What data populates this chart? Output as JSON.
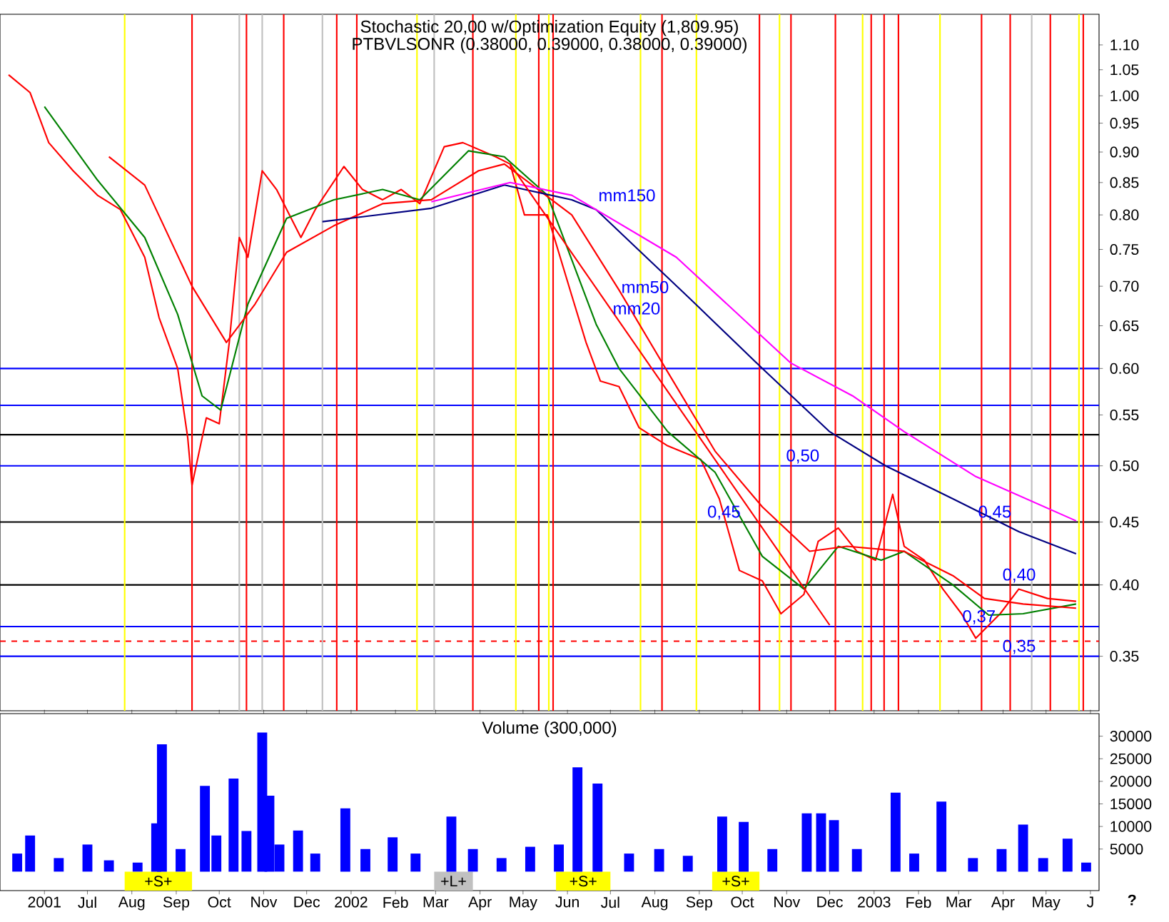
{
  "chart_data": [
    {
      "type": "line",
      "title": "Stochastic 20,00 w/Optimization Equity (1,809.95)",
      "subtitle": "PTBVLSONR (0.38000, 0.39000, 0.38000, 0.39000)",
      "log": true,
      "tick_labels": "y",
      "xlim": [
        "2001-05-01",
        "2003-06-07"
      ],
      "ylim": [
        0.316,
        1.165
      ],
      "yticks": [
        0.35,
        {
          "value": 0.4,
          "label": "0.40"
        },
        0.45,
        {
          "value": 0.5,
          "label": "0.50"
        },
        0.55,
        {
          "value": 0.6,
          "label": "0.60"
        },
        0.65,
        {
          "value": 0.7,
          "label": "0.70"
        },
        0.75,
        {
          "value": 0.8,
          "label": "0.80"
        },
        0.85,
        {
          "value": 0.9,
          "label": "0.90"
        },
        0.95,
        {
          "value": 1.0,
          "label": "1.00"
        },
        1.05,
        {
          "value": 1.1,
          "label": "1.10"
        }
      ],
      "series": [
        {
          "color": "#ff0000",
          "x": [
            "2001-05-07",
            "2001-05-22",
            "2001-06-04",
            "2001-06-21",
            "2001-07-08",
            "2001-07-24",
            "2001-08-10",
            "2001-08-20",
            "2001-09-02",
            "2001-09-09",
            "2001-09-12",
            "2001-09-22",
            "2001-10-01",
            "2001-10-08",
            "2001-10-15",
            "2001-10-21",
            "2001-10-31",
            "2001-11-10",
            "2001-11-27",
            "2001-12-07",
            "2001-12-27",
            "2002-01-09",
            "2002-01-23",
            "2002-02-05",
            "2002-02-18",
            "2002-03-07",
            "2002-03-20",
            "2002-04-12",
            "2002-04-22",
            "2002-05-02",
            "2002-05-18",
            "2002-06-04",
            "2002-06-14",
            "2002-06-24",
            "2002-07-07",
            "2002-07-21",
            "2002-08-10",
            "2002-09-02",
            "2002-09-15",
            "2002-09-29",
            "2002-10-15",
            "2002-10-28",
            "2002-11-13",
            "2002-11-23",
            "2002-12-07",
            "2002-12-20",
            "2003-01-02",
            "2003-01-14",
            "2003-01-22",
            "2003-02-05",
            "2003-02-18",
            "2003-03-03",
            "2003-03-13",
            "2003-03-30",
            "2003-04-12",
            "2003-05-02",
            "2003-05-22"
          ],
          "values": [
            1.04,
            1.006,
            0.916,
            0.869,
            0.83,
            0.808,
            0.739,
            0.66,
            0.6,
            0.527,
            0.482,
            0.547,
            0.541,
            0.63,
            0.767,
            0.739,
            0.869,
            0.839,
            0.767,
            0.808,
            0.876,
            0.839,
            0.823,
            0.839,
            0.817,
            0.909,
            0.916,
            0.892,
            0.88,
            0.8,
            0.8,
            0.688,
            0.63,
            0.586,
            0.58,
            0.537,
            0.519,
            0.506,
            0.47,
            0.411,
            0.403,
            0.379,
            0.393,
            0.434,
            0.445,
            0.426,
            0.419,
            0.474,
            0.43,
            0.419,
            0.397,
            0.379,
            0.362,
            0.379,
            0.397,
            0.39,
            0.388
          ]
        },
        {
          "color": "#008000",
          "x": [
            "2001-06-01",
            "2001-07-08",
            "2001-08-10",
            "2001-09-02",
            "2001-09-19",
            "2001-10-02",
            "2001-10-21",
            "2001-11-17",
            "2001-12-20",
            "2002-01-23",
            "2002-02-18",
            "2002-03-24",
            "2002-04-18",
            "2002-05-18",
            "2002-06-21",
            "2002-07-07",
            "2002-08-10",
            "2002-09-12",
            "2002-10-15",
            "2002-11-13",
            "2002-12-07",
            "2003-01-06",
            "2003-01-22",
            "2003-02-25",
            "2003-03-22",
            "2003-04-15",
            "2003-05-22"
          ],
          "values": [
            0.98,
            0.854,
            0.767,
            0.664,
            0.57,
            0.555,
            0.677,
            0.795,
            0.823,
            0.839,
            0.823,
            0.902,
            0.892,
            0.83,
            0.652,
            0.6,
            0.533,
            0.494,
            0.422,
            0.397,
            0.43,
            0.419,
            0.426,
            0.4,
            0.378,
            0.379,
            0.386
          ]
        },
        {
          "color": "#ff0000",
          "x": [
            "2001-07-16",
            "2001-08-10",
            "2001-09-12",
            "2001-10-06",
            "2001-10-26",
            "2001-11-17",
            "2001-12-20",
            "2002-01-23",
            "2002-02-26",
            "2002-03-31",
            "2002-04-18",
            "2002-06-04",
            "2002-07-07",
            "2002-08-10",
            "2002-09-12",
            "2002-10-15",
            "2002-11-17",
            "2002-12-13",
            "2003-01-22",
            "2003-02-25",
            "2003-03-19",
            "2003-04-15",
            "2003-05-22"
          ],
          "values": [
            0.892,
            0.846,
            0.7,
            0.63,
            0.677,
            0.746,
            0.784,
            0.817,
            0.823,
            0.869,
            0.88,
            0.8,
            0.695,
            0.596,
            0.514,
            0.463,
            0.426,
            0.43,
            0.426,
            0.407,
            0.39,
            0.386,
            0.383
          ]
        },
        {
          "color": "#000080",
          "x": [
            "2001-12-12",
            "2002-02-26",
            "2002-04-18",
            "2002-06-04",
            "2002-06-21",
            "2002-08-26",
            "2002-10-15",
            "2002-12-01",
            "2003-01-09",
            "2003-02-25",
            "2003-04-12",
            "2003-05-22"
          ],
          "values": [
            0.79,
            0.81,
            0.846,
            0.823,
            0.808,
            0.683,
            0.6,
            0.533,
            0.5,
            0.47,
            0.442,
            0.424
          ]
        },
        {
          "color": "#ff00ff",
          "x": [
            "2002-02-26",
            "2002-04-22",
            "2002-06-04",
            "2002-08-16",
            "2002-11-04",
            "2002-12-17",
            "2003-01-22",
            "2003-03-13",
            "2003-05-22"
          ],
          "values": [
            0.82,
            0.85,
            0.83,
            0.739,
            0.606,
            0.57,
            0.533,
            0.49,
            0.451
          ]
        },
        {
          "color": "#ff0000",
          "x": [
            "2002-04-22",
            "2002-12-01"
          ],
          "values": [
            0.88,
            0.371
          ]
        }
      ],
      "ref_lines": [
        {
          "axis": "y",
          "value": 0.6,
          "color": "#0000ff"
        },
        {
          "axis": "y",
          "value": 0.56,
          "color": "#0000ff"
        },
        {
          "axis": "y",
          "value": 0.53,
          "color": "#000000"
        },
        {
          "axis": "y",
          "value": 0.5,
          "color": "#0000ff"
        },
        {
          "axis": "y",
          "value": 0.45,
          "color": "#000000"
        },
        {
          "axis": "y",
          "value": 0.4,
          "color": "#000000"
        },
        {
          "axis": "y",
          "value": 0.37,
          "color": "#0000ff"
        },
        {
          "axis": "y",
          "value": 0.36,
          "color": "#ff0000",
          "line_style": "dashed"
        },
        {
          "axis": "y",
          "value": 0.35,
          "color": "#0000ff"
        },
        {
          "axis": "x",
          "value": "2001-09-12",
          "color": "#ff0000"
        },
        {
          "axis": "x",
          "value": "2001-10-20",
          "color": "#ff0000"
        },
        {
          "axis": "x",
          "value": "2001-11-15",
          "color": "#ff0000"
        },
        {
          "axis": "x",
          "value": "2001-12-22",
          "color": "#ff0000"
        },
        {
          "axis": "x",
          "value": "2002-01-05",
          "color": "#ff0000"
        },
        {
          "axis": "x",
          "value": "2002-03-27",
          "color": "#ff0000"
        },
        {
          "axis": "x",
          "value": "2002-05-12",
          "color": "#ff0000"
        },
        {
          "axis": "x",
          "value": "2002-05-22",
          "color": "#ff0000"
        },
        {
          "axis": "x",
          "value": "2002-08-06",
          "color": "#ff0000"
        },
        {
          "axis": "x",
          "value": "2002-10-13",
          "color": "#ff0000"
        },
        {
          "axis": "x",
          "value": "2002-11-04",
          "color": "#ff0000"
        },
        {
          "axis": "x",
          "value": "2002-12-05",
          "color": "#ff0000"
        },
        {
          "axis": "x",
          "value": "2002-12-30",
          "color": "#ff0000"
        },
        {
          "axis": "x",
          "value": "2003-01-08",
          "color": "#ff0000"
        },
        {
          "axis": "x",
          "value": "2003-01-18",
          "color": "#ff0000"
        },
        {
          "axis": "x",
          "value": "2003-03-17",
          "color": "#ff0000"
        },
        {
          "axis": "x",
          "value": "2003-04-06",
          "color": "#ff0000"
        },
        {
          "axis": "x",
          "value": "2003-05-04",
          "color": "#ff0000"
        },
        {
          "axis": "x",
          "value": "2003-05-27",
          "color": "#ff0000"
        },
        {
          "axis": "x",
          "value": "2001-07-27",
          "color": "#ffff00"
        },
        {
          "axis": "x",
          "value": "2002-02-16",
          "color": "#ffff00"
        },
        {
          "axis": "x",
          "value": "2002-04-26",
          "color": "#ffff00"
        },
        {
          "axis": "x",
          "value": "2002-05-19",
          "color": "#ffff00"
        },
        {
          "axis": "x",
          "value": "2002-07-22",
          "color": "#ffff00"
        },
        {
          "axis": "x",
          "value": "2002-08-30",
          "color": "#ffff00"
        },
        {
          "axis": "x",
          "value": "2002-10-27",
          "color": "#ffff00"
        },
        {
          "axis": "x",
          "value": "2002-12-24",
          "color": "#ffff00"
        },
        {
          "axis": "x",
          "value": "2003-02-16",
          "color": "#ffff00"
        },
        {
          "axis": "x",
          "value": "2003-05-24",
          "color": "#ffff00"
        },
        {
          "axis": "x",
          "value": "2001-10-15",
          "color": "#c0c0c0"
        },
        {
          "axis": "x",
          "value": "2001-10-31",
          "color": "#c0c0c0"
        },
        {
          "axis": "x",
          "value": "2001-12-12",
          "color": "#c0c0c0"
        },
        {
          "axis": "x",
          "value": "2002-02-28",
          "color": "#c0c0c0"
        },
        {
          "axis": "x",
          "value": "2003-04-21",
          "color": "#c0c0c0"
        }
      ],
      "annotations": [
        {
          "text": "mm150",
          "x": "2002-06-21",
          "y": 0.817
        },
        {
          "text": "mm50",
          "x": "2002-07-07",
          "y": 0.688
        },
        {
          "text": "mm20",
          "x": "2002-07-01",
          "y": 0.661
        },
        {
          "text": "0,50",
          "x": "2002-10-30",
          "y": 0.5
        },
        {
          "text": "0,45",
          "x": "2002-09-05",
          "y": 0.45
        },
        {
          "text": "0,45",
          "x": "2003-03-13",
          "y": 0.45
        },
        {
          "text": "0,40",
          "x": "2003-03-30",
          "y": 0.4
        },
        {
          "text": "0,37",
          "x": "2003-03-02",
          "y": 0.37
        },
        {
          "text": "0,35",
          "x": "2003-03-30",
          "y": 0.35
        }
      ]
    },
    {
      "type": "bar",
      "title": "Volume (300,000)",
      "color": "#0000ff",
      "xlim": [
        "2001-05-01",
        "2003-06-07"
      ],
      "ylim": [
        -4200,
        35000
      ],
      "yticks": [
        5000,
        10000,
        15000,
        20000,
        25000,
        30000
      ],
      "xticks": [
        {
          "value": "2001-06-01",
          "label": "2001"
        },
        {
          "value": "2001-07-01",
          "label": "Jul"
        },
        {
          "value": "2001-08-01",
          "label": "Aug"
        },
        {
          "value": "2001-09-01",
          "label": "Sep"
        },
        {
          "value": "2001-10-01",
          "label": "Oct"
        },
        {
          "value": "2001-11-01",
          "label": "Nov"
        },
        {
          "value": "2001-12-01",
          "label": "Dec"
        },
        {
          "value": "2002-01-01",
          "label": "2002"
        },
        {
          "value": "2002-02-01",
          "label": "Feb"
        },
        {
          "value": "2002-03-01",
          "label": "Mar"
        },
        {
          "value": "2002-04-01",
          "label": "Apr"
        },
        {
          "value": "2002-05-01",
          "label": "May"
        },
        {
          "value": "2002-06-01",
          "label": "Jun"
        },
        {
          "value": "2002-07-01",
          "label": "Jul"
        },
        {
          "value": "2002-08-01",
          "label": "Aug"
        },
        {
          "value": "2002-09-01",
          "label": "Sep"
        },
        {
          "value": "2002-10-01",
          "label": "Oct"
        },
        {
          "value": "2002-11-01",
          "label": "Nov"
        },
        {
          "value": "2002-12-01",
          "label": "Dec"
        },
        {
          "value": "2003-01-01",
          "label": "2003"
        },
        {
          "value": "2003-02-01",
          "label": "Feb"
        },
        {
          "value": "2003-03-01",
          "label": "Mar"
        },
        {
          "value": "2003-04-01",
          "label": "Apr"
        },
        {
          "value": "2003-05-01",
          "label": "May"
        },
        {
          "value": "2003-06-01",
          "label": "J"
        }
      ],
      "x": [
        "2001-05-13",
        "2001-05-22",
        "2001-06-11",
        "2001-07-01",
        "2001-07-16",
        "2001-08-05",
        "2001-08-18",
        "2001-08-22",
        "2001-09-04",
        "2001-09-21",
        "2001-09-29",
        "2001-10-11",
        "2001-10-20",
        "2001-10-31",
        "2001-11-05",
        "2001-11-12",
        "2001-11-25",
        "2001-12-07",
        "2001-12-28",
        "2002-01-11",
        "2002-01-30",
        "2002-02-15",
        "2002-03-12",
        "2002-03-27",
        "2002-04-16",
        "2002-05-06",
        "2002-05-26",
        "2002-06-08",
        "2002-06-22",
        "2002-07-14",
        "2002-08-04",
        "2002-08-24",
        "2002-09-17",
        "2002-10-02",
        "2002-10-22",
        "2002-11-15",
        "2002-11-25",
        "2002-12-04",
        "2002-12-20",
        "2003-01-16",
        "2003-01-29",
        "2003-02-17",
        "2003-03-11",
        "2003-03-31",
        "2003-04-15",
        "2003-04-29",
        "2003-05-16",
        "2003-05-29"
      ],
      "values": [
        4000,
        8000,
        3000,
        6000,
        2500,
        2000,
        10700,
        28200,
        5000,
        19000,
        8000,
        20600,
        9000,
        30800,
        16800,
        6000,
        9100,
        4000,
        14000,
        5000,
        7600,
        4000,
        12200,
        5000,
        3000,
        5500,
        6000,
        23100,
        19500,
        4000,
        5000,
        3500,
        12200,
        11000,
        5000,
        12900,
        12900,
        11400,
        5000,
        17500,
        4000,
        15500,
        3000,
        5000,
        10400,
        3000,
        7300,
        2000
      ],
      "bands": [
        {
          "axis": "x",
          "from": "2001-07-27",
          "to": "2001-09-12",
          "label": "+S+",
          "color": "#ffff00"
        },
        {
          "axis": "x",
          "from": "2002-02-28",
          "to": "2002-03-27",
          "label": "+L+",
          "color": "#c0c0c0"
        },
        {
          "axis": "x",
          "from": "2002-05-24",
          "to": "2002-07-01",
          "label": "+S+",
          "color": "#ffff00"
        },
        {
          "axis": "x",
          "from": "2002-09-10",
          "to": "2002-10-13",
          "label": "+S+",
          "color": "#ffff00"
        }
      ],
      "annotations": [
        "?"
      ]
    }
  ]
}
